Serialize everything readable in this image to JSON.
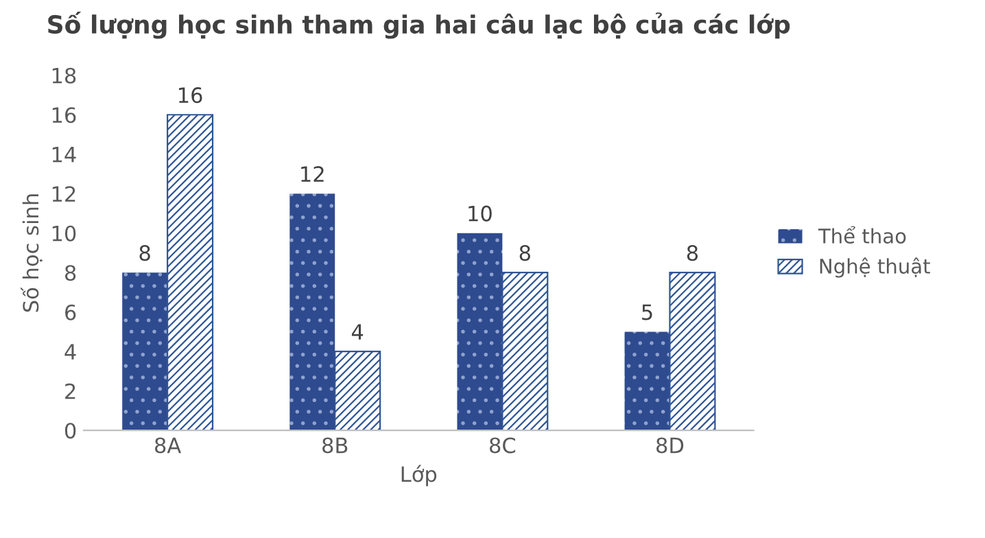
{
  "chart_data": {
    "type": "bar",
    "title": "Số lượng học sinh tham gia hai câu lạc bộ của các lớp",
    "xlabel": "Lớp",
    "ylabel": "Số học sinh",
    "categories": [
      "8A",
      "8B",
      "8C",
      "8D"
    ],
    "series": [
      {
        "name": "Thể thao",
        "color": "#2f4b8f",
        "values": [
          8,
          12,
          10,
          5
        ]
      },
      {
        "name": "Nghệ thuật",
        "color": "#2f5597",
        "values": [
          16,
          4,
          8,
          8
        ]
      }
    ],
    "ylim": [
      0,
      18
    ],
    "yticks": [
      0,
      2,
      4,
      6,
      8,
      10,
      12,
      14,
      16,
      18
    ],
    "grid": false,
    "legend": "right",
    "data_labels": true
  }
}
